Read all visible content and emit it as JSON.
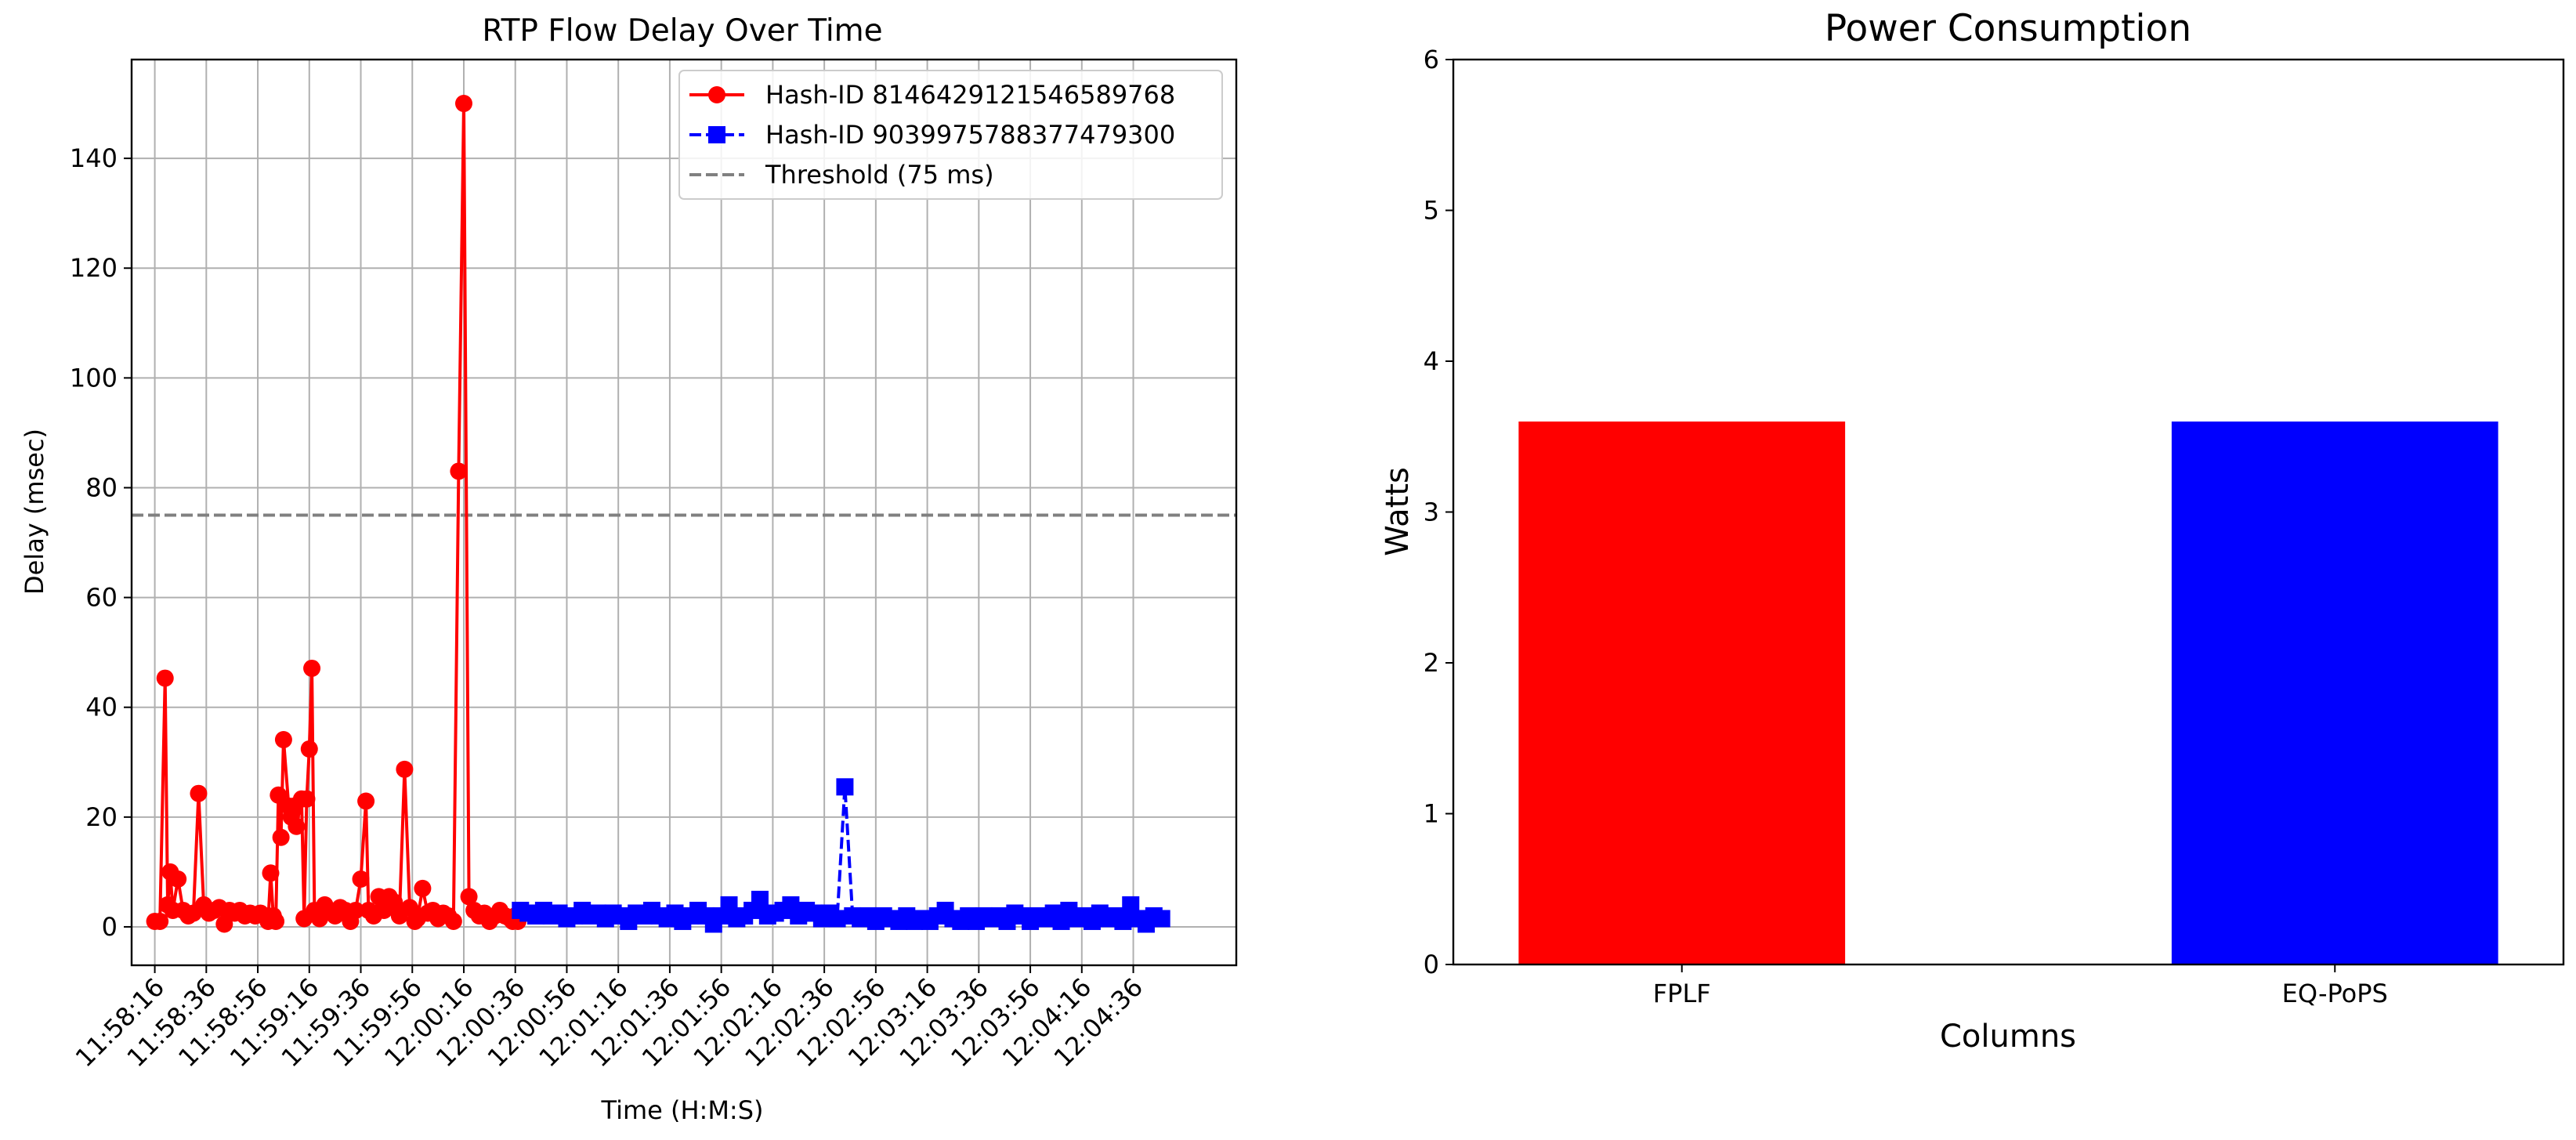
{
  "chart_data": [
    {
      "type": "line",
      "title": "RTP Flow Delay Over Time",
      "xlabel": "Time (H:M:S)",
      "ylabel": "Delay (msec)",
      "ylim": [
        -7,
        158
      ],
      "xlim": [
        "11:58:07",
        "12:05:16"
      ],
      "yticks": [
        0,
        20,
        40,
        60,
        80,
        100,
        120,
        140
      ],
      "xticks": [
        "11:58:16",
        "11:58:36",
        "11:58:56",
        "11:59:16",
        "11:59:36",
        "11:59:56",
        "12:00:16",
        "12:00:36",
        "12:00:56",
        "12:01:16",
        "12:01:36",
        "12:01:56",
        "12:02:16",
        "12:02:36",
        "12:02:56",
        "12:03:16",
        "12:03:36",
        "12:03:56",
        "12:04:16",
        "12:04:36"
      ],
      "grid": true,
      "legend_position": "top-right",
      "series": [
        {
          "name": "Hash-ID 8146429121546589768",
          "color": "#ff0000",
          "style": "solid",
          "marker": "circle",
          "x": [
            "11:58:16",
            "11:58:18",
            "11:58:20",
            "11:58:21",
            "11:58:22",
            "11:58:23",
            "11:58:25",
            "11:58:27",
            "11:58:29",
            "11:58:31",
            "11:58:33",
            "11:58:35",
            "11:58:37",
            "11:58:39",
            "11:58:41",
            "11:58:43",
            "11:58:45",
            "11:58:47",
            "11:58:49",
            "11:58:51",
            "11:58:53",
            "11:58:55",
            "11:58:57",
            "11:58:59",
            "11:59:00",
            "11:59:01",
            "11:59:02",
            "11:59:03",
            "11:59:04",
            "11:59:05",
            "11:59:06",
            "11:59:08",
            "11:59:09",
            "11:59:10",
            "11:59:11",
            "11:59:13",
            "11:59:14",
            "11:59:15",
            "11:59:16",
            "11:59:17",
            "11:59:18",
            "11:59:20",
            "11:59:22",
            "11:59:24",
            "11:59:26",
            "11:59:28",
            "11:59:30",
            "11:59:32",
            "11:59:34",
            "11:59:36",
            "11:59:38",
            "11:59:39",
            "11:59:41",
            "11:59:43",
            "11:59:45",
            "11:59:47",
            "11:59:49",
            "11:59:51",
            "11:59:53",
            "11:59:55",
            "11:59:57",
            "11:59:58",
            "12:00:00",
            "12:00:02",
            "12:00:04",
            "12:00:06",
            "12:00:08",
            "12:00:10",
            "12:00:12",
            "12:00:14",
            "12:00:16",
            "12:00:18",
            "12:00:20",
            "12:00:22",
            "12:00:24",
            "12:00:26",
            "12:00:28",
            "12:00:30",
            "12:00:32",
            "12:00:34",
            "12:00:35",
            "12:00:36",
            "12:00:37"
          ],
          "y": [
            1,
            1,
            45.3,
            4,
            10,
            3,
            8.7,
            3,
            2,
            2.5,
            24.3,
            4,
            2.5,
            3,
            3.5,
            0.5,
            3,
            2.5,
            3,
            2,
            2.5,
            2,
            2.5,
            2,
            1,
            9.8,
            2,
            1,
            24,
            16.3,
            34.1,
            22,
            20,
            22,
            18.3,
            23.3,
            1.5,
            23.3,
            32.4,
            47.1,
            3,
            1.5,
            4,
            3,
            2,
            3.5,
            3,
            1,
            3,
            8.7,
            22.9,
            3,
            2,
            5.5,
            3,
            5.5,
            4.5,
            2,
            28.7,
            3.5,
            1,
            1.5,
            7,
            2.5,
            3,
            1.5,
            2.5,
            2,
            1,
            83,
            150,
            5.5,
            3,
            2,
            2.5,
            1,
            2,
            3,
            2,
            1.5,
            1,
            2,
            1
          ]
        },
        {
          "name": "Hash-ID 9039975788377479300",
          "color": "#0000ff",
          "style": "dashed",
          "marker": "square",
          "x": [
            "12:00:38",
            "12:00:41",
            "12:00:44",
            "12:00:47",
            "12:00:50",
            "12:00:53",
            "12:00:56",
            "12:00:59",
            "12:01:02",
            "12:01:05",
            "12:01:08",
            "12:01:11",
            "12:01:14",
            "12:01:17",
            "12:01:20",
            "12:01:23",
            "12:01:26",
            "12:01:29",
            "12:01:32",
            "12:01:35",
            "12:01:38",
            "12:01:41",
            "12:01:44",
            "12:01:47",
            "12:01:50",
            "12:01:53",
            "12:01:56",
            "12:01:59",
            "12:02:02",
            "12:02:05",
            "12:02:08",
            "12:02:11",
            "12:02:14",
            "12:02:17",
            "12:02:20",
            "12:02:23",
            "12:02:26",
            "12:02:29",
            "12:02:32",
            "12:02:35",
            "12:02:38",
            "12:02:41",
            "12:02:44",
            "12:02:47",
            "12:02:50",
            "12:02:53",
            "12:02:56",
            "12:02:59",
            "12:03:02",
            "12:03:05",
            "12:03:08",
            "12:03:11",
            "12:03:14",
            "12:03:17",
            "12:03:20",
            "12:03:23",
            "12:03:26",
            "12:03:29",
            "12:03:32",
            "12:03:35",
            "12:03:38",
            "12:03:41",
            "12:03:44",
            "12:03:47",
            "12:03:50",
            "12:03:53",
            "12:03:56",
            "12:03:59",
            "12:04:02",
            "12:04:05",
            "12:04:08",
            "12:04:11",
            "12:04:14",
            "12:04:17",
            "12:04:20",
            "12:04:23",
            "12:04:26",
            "12:04:29",
            "12:04:32",
            "12:04:35",
            "12:04:38",
            "12:04:41",
            "12:04:44",
            "12:04:47"
          ],
          "y": [
            3,
            2.5,
            2,
            3,
            2,
            2.5,
            1.5,
            2,
            3,
            2,
            2.5,
            1.5,
            2.5,
            2,
            1,
            2.5,
            2,
            3,
            2,
            1.5,
            2.5,
            1,
            2,
            3,
            2,
            0.5,
            2,
            4,
            1.5,
            2,
            3,
            5,
            2,
            2.5,
            3,
            4,
            2,
            3,
            2.5,
            1.5,
            2.5,
            1.5,
            25.5,
            2,
            1.5,
            2,
            1,
            2,
            1.5,
            1,
            2,
            1,
            1.5,
            1,
            2,
            3,
            1.5,
            1,
            2,
            1,
            2,
            1.5,
            2,
            1,
            2.5,
            2,
            1,
            2,
            1.5,
            2.5,
            1,
            3,
            1.5,
            2,
            1,
            2.5,
            1.5,
            2,
            1,
            4,
            1.5,
            0.5,
            2,
            1.5
          ]
        },
        {
          "name": "Threshold (75 ms)",
          "color": "#808080",
          "style": "dashed",
          "marker": "none",
          "y_constant": 75
        }
      ]
    },
    {
      "type": "bar",
      "title": "Power Consumption",
      "xlabel": "Columns",
      "ylabel": "Watts",
      "ylim": [
        0,
        6
      ],
      "yticks": [
        0,
        1,
        2,
        3,
        4,
        5,
        6
      ],
      "categories": [
        "FPLF",
        "EQ-PoPS"
      ],
      "values": [
        3.6,
        3.6
      ],
      "colors": [
        "#ff0000",
        "#0000ff"
      ],
      "grid": false
    }
  ]
}
